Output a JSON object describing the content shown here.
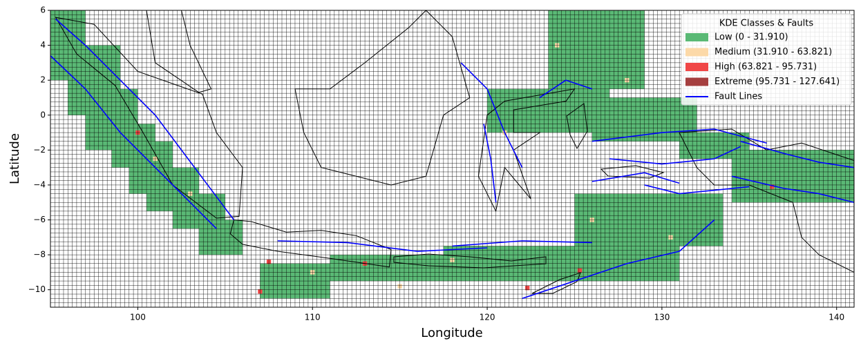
{
  "chart_data": {
    "type": "map",
    "x_label": "Longitude",
    "y_label": "Latitude",
    "xlim": [
      95,
      141
    ],
    "ylim": [
      -11,
      6
    ],
    "xticks": [
      100,
      110,
      120,
      130,
      140
    ],
    "yticks": [
      {
        "value": -10,
        "label": "−10"
      },
      {
        "value": -8,
        "label": "−8"
      },
      {
        "value": -6,
        "label": "−6"
      },
      {
        "value": -4,
        "label": "−4"
      },
      {
        "value": -2,
        "label": "−2"
      },
      0,
      2,
      4,
      6
    ],
    "cell_size": 0.25,
    "legend_title": "KDE Classes & Faults",
    "legend_position": "upper right",
    "classes": [
      {
        "name": "Low (0 - 31.910)",
        "color": "#5ab975"
      },
      {
        "name": "Medium (31.910 - 63.821)",
        "color": "#fcd9a8"
      },
      {
        "name": "High (63.821 - 95.731)",
        "color": "#f04646"
      },
      {
        "name": "Extreme (95.731 - 127.641)",
        "color": "#a53f3f"
      }
    ],
    "regions": [
      {
        "lon": [
          95,
          97
        ],
        "lat": [
          2,
          6
        ],
        "class": 0
      },
      {
        "lon": [
          96,
          99
        ],
        "lat": [
          0,
          4
        ],
        "class": 0
      },
      {
        "lon": [
          97,
          100
        ],
        "lat": [
          -2,
          1.5
        ],
        "class": 0
      },
      {
        "lon": [
          98.5,
          101
        ],
        "lat": [
          -3,
          -0.5
        ],
        "class": 0
      },
      {
        "lon": [
          99.5,
          102
        ],
        "lat": [
          -4.5,
          -1.5
        ],
        "class": 0
      },
      {
        "lon": [
          100.5,
          103.5
        ],
        "lat": [
          -5.5,
          -3
        ],
        "class": 0
      },
      {
        "lon": [
          102,
          105
        ],
        "lat": [
          -6.5,
          -4.5
        ],
        "class": 0
      },
      {
        "lon": [
          103.5,
          106
        ],
        "lat": [
          -8,
          -6
        ],
        "class": 0
      },
      {
        "lon": [
          107,
          111
        ],
        "lat": [
          -10.5,
          -8.5
        ],
        "class": 0
      },
      {
        "lon": [
          111,
          118
        ],
        "lat": [
          -9.5,
          -8
        ],
        "class": 0
      },
      {
        "lon": [
          117.5,
          131
        ],
        "lat": [
          -9.5,
          -7.5
        ],
        "class": 0
      },
      {
        "lon": [
          125,
          133.5
        ],
        "lat": [
          -7.5,
          -4.5
        ],
        "class": 0
      },
      {
        "lon": [
          120,
          127
        ],
        "lat": [
          -1,
          1.5
        ],
        "class": 0
      },
      {
        "lon": [
          123.5,
          129
        ],
        "lat": [
          1.5,
          6
        ],
        "class": 0
      },
      {
        "lon": [
          126,
          132
        ],
        "lat": [
          -1.5,
          1
        ],
        "class": 0
      },
      {
        "lon": [
          131,
          135
        ],
        "lat": [
          -2.5,
          -1
        ],
        "class": 0
      },
      {
        "lon": [
          134,
          141
        ],
        "lat": [
          -5,
          -2
        ],
        "class": 0
      }
    ],
    "cells": {
      "lon": [
        100,
        101,
        103,
        107.5,
        107,
        110,
        113,
        115,
        118,
        122.3,
        125.3,
        124,
        128,
        136.3,
        130.5,
        121,
        126
      ],
      "lat": [
        -1,
        -2.5,
        -4.5,
        -8.4,
        -10.1,
        -9,
        -8.5,
        -9.8,
        -8.3,
        -9.9,
        -8.9,
        4,
        2,
        -4.1,
        -7,
        -1,
        -6
      ],
      "class": [
        2,
        1,
        1,
        2,
        2,
        1,
        2,
        1,
        1,
        2,
        2,
        1,
        1,
        2,
        1,
        1,
        1
      ]
    },
    "fault_name": "Fault Lines",
    "fault_color": "#0000ff",
    "faults": [
      {
        "x": [
          95.3,
          97,
          99,
          101,
          102.5,
          104,
          105.5
        ],
        "y": [
          5.5,
          4,
          2,
          0,
          -2,
          -4,
          -6
        ]
      },
      {
        "x": [
          95,
          97,
          99,
          101,
          103,
          104.5
        ],
        "y": [
          3.4,
          1.5,
          -1,
          -3,
          -5,
          -6.5
        ]
      },
      {
        "x": [
          108,
          112,
          116,
          120
        ],
        "y": [
          -7.2,
          -7.3,
          -7.8,
          -7.6
        ]
      },
      {
        "x": [
          118,
          122,
          126
        ],
        "y": [
          -7.5,
          -7.2,
          -7.3
        ]
      },
      {
        "x": [
          122,
          125,
          128,
          131,
          133
        ],
        "y": [
          -10.5,
          -9.5,
          -8.5,
          -7.8,
          -6
        ]
      },
      {
        "x": [
          127,
          130,
          133,
          134.5
        ],
        "y": [
          -2.5,
          -2.8,
          -2.5,
          -1.8
        ]
      },
      {
        "x": [
          126,
          130,
          133,
          136
        ],
        "y": [
          -1.5,
          -1,
          -0.8,
          -1.6
        ]
      },
      {
        "x": [
          134.5,
          137,
          139,
          141
        ],
        "y": [
          -1.5,
          -2.2,
          -2.7,
          -3
        ]
      },
      {
        "x": [
          118.5,
          120,
          121,
          122
        ],
        "y": [
          3,
          1.5,
          -1,
          -3
        ]
      },
      {
        "x": [
          119.8,
          120.2,
          120.5
        ],
        "y": [
          -0.5,
          -2.5,
          -5
        ]
      },
      {
        "x": [
          129,
          131,
          133,
          135
        ],
        "y": [
          -4,
          -4.5,
          -4.3,
          -4.1
        ]
      },
      {
        "x": [
          123,
          124.5,
          126
        ],
        "y": [
          1,
          2,
          1.5
        ]
      },
      {
        "x": [
          134,
          137,
          139,
          141
        ],
        "y": [
          -3.5,
          -4.2,
          -4.5,
          -5
        ]
      },
      {
        "x": [
          126,
          129,
          131
        ],
        "y": [
          -3.8,
          -3.3,
          -3.9
        ]
      }
    ]
  }
}
